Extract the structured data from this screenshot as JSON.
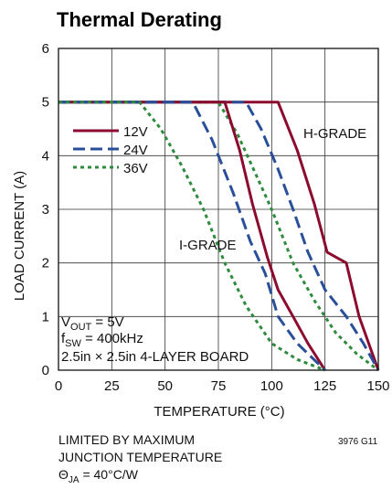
{
  "chart_data": {
    "type": "line",
    "title": "Thermal Derating",
    "xlabel": "TEMPERATURE (°C)",
    "ylabel": "LOAD CURRENT (A)",
    "xlim": [
      0,
      150
    ],
    "ylim": [
      0,
      6
    ],
    "x_ticks": [
      "0",
      "25",
      "50",
      "75",
      "100",
      "125",
      "150"
    ],
    "y_ticks": [
      "0",
      "1",
      "2",
      "3",
      "4",
      "5",
      "6"
    ],
    "grid": true,
    "legend_position": "top-left",
    "colors": {
      "12V": "#8b0a2e",
      "24V": "#2a4f9a",
      "36V": "#2e8b3e"
    },
    "series": [
      {
        "name": "12V",
        "group": "H-GRADE",
        "dash": "solid",
        "points": [
          [
            0,
            5
          ],
          [
            103,
            5
          ],
          [
            112,
            4.1
          ],
          [
            120,
            3.1
          ],
          [
            126,
            2.2
          ],
          [
            135,
            2
          ],
          [
            141,
            1
          ],
          [
            150,
            0
          ]
        ]
      },
      {
        "name": "24V",
        "group": "H-GRADE",
        "dash": "dashed",
        "points": [
          [
            0,
            5
          ],
          [
            88,
            5
          ],
          [
            95,
            4.5
          ],
          [
            103,
            3.75
          ],
          [
            110,
            3
          ],
          [
            117,
            2.2
          ],
          [
            125,
            1.5
          ],
          [
            135,
            1
          ],
          [
            143,
            0.5
          ],
          [
            150,
            0
          ]
        ]
      },
      {
        "name": "36V",
        "group": "H-GRADE",
        "dash": "dotted",
        "points": [
          [
            0,
            5
          ],
          [
            75,
            5
          ],
          [
            84,
            4.4
          ],
          [
            92,
            3.7
          ],
          [
            100,
            3
          ],
          [
            110,
            2
          ],
          [
            120,
            1.3
          ],
          [
            130,
            0.7
          ],
          [
            140,
            0.3
          ],
          [
            150,
            0
          ]
        ]
      },
      {
        "name": "12V",
        "group": "I-GRADE",
        "dash": "solid",
        "points": [
          [
            0,
            5
          ],
          [
            78,
            5
          ],
          [
            85,
            4.1
          ],
          [
            91,
            3.1
          ],
          [
            98,
            2.1
          ],
          [
            103,
            1.5
          ],
          [
            110,
            1
          ],
          [
            117,
            0.5
          ],
          [
            125,
            0
          ]
        ]
      },
      {
        "name": "24V",
        "group": "I-GRADE",
        "dash": "dashed",
        "points": [
          [
            0,
            5
          ],
          [
            63,
            5
          ],
          [
            72,
            4.3
          ],
          [
            82,
            3.3
          ],
          [
            90,
            2.4
          ],
          [
            97,
            1.8
          ],
          [
            103,
            1
          ],
          [
            112,
            0.5
          ],
          [
            125,
            0
          ]
        ]
      },
      {
        "name": "36V",
        "group": "I-GRADE",
        "dash": "dotted",
        "points": [
          [
            0,
            5
          ],
          [
            38,
            5
          ],
          [
            48,
            4.5
          ],
          [
            58,
            3.8
          ],
          [
            68,
            3
          ],
          [
            78,
            2
          ],
          [
            88,
            1.2
          ],
          [
            100,
            0.5
          ],
          [
            112,
            0.2
          ],
          [
            125,
            0
          ]
        ]
      }
    ],
    "annotations": {
      "h_grade": "H-GRADE",
      "i_grade": "I-GRADE",
      "cond1_main": "V",
      "cond1_sub": "OUT",
      "cond1_rest": " = 5V",
      "cond2_main": "f",
      "cond2_sub": "SW",
      "cond2_rest": " = 400kHz",
      "cond3": "2.5in × 2.5in 4-LAYER BOARD"
    },
    "notes": {
      "line1": "LIMITED BY MAXIMUM",
      "line2": "JUNCTION TEMPERATURE",
      "line3_main": "Θ",
      "line3_sub": "JA",
      "line3_rest": " = 40°C/W",
      "figure_id": "3976 G11"
    }
  }
}
